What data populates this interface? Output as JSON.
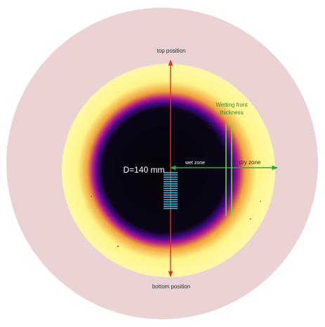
{
  "labels": {
    "top_position": "top position",
    "bottom_position": "bottom position",
    "wetting_front_line1": "Wetting front",
    "wetting_front_line2": "thickness",
    "diameter": "D=140 mm",
    "wet_zone": "wet zone",
    "dry_zone": "dry zone"
  },
  "colors": {
    "outer_disc": "#ecd3d3",
    "yellow": "#fff58a",
    "orange": "#f0a23c",
    "magenta": "#b21888",
    "purple": "#4a0a8c",
    "core": "#050308",
    "vertical_arrow": "#d8341f",
    "horizontal_arrow": "#2ea83a",
    "wetting_front_line": "#6fd840",
    "ruler_ticks": "#3fc6e8"
  },
  "icons": {
    "vertical_arrow": "double-headed-arrow-vertical",
    "horizontal_arrow": "double-headed-arrow-horizontal"
  }
}
